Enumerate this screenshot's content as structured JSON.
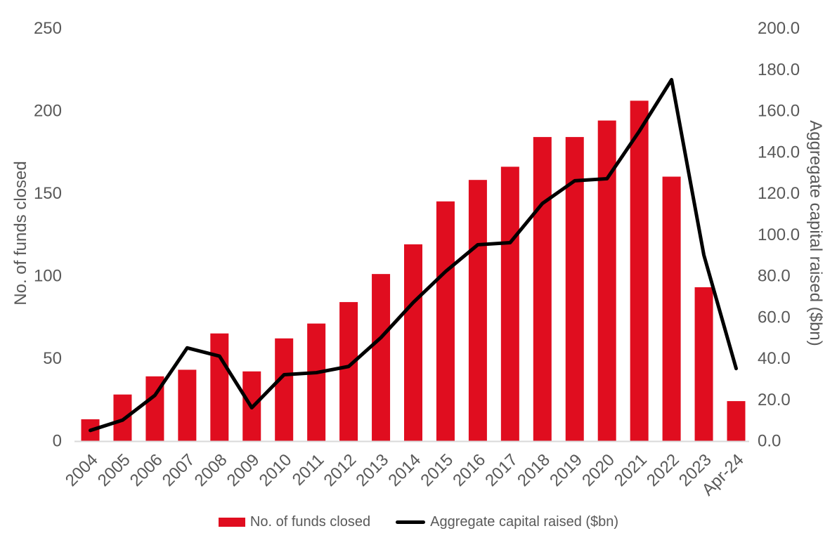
{
  "colors": {
    "bar": "#e00d1f",
    "line": "#000000",
    "axis_line": "#d9d9d9",
    "text": "#595959",
    "background": "#ffffff"
  },
  "chart_data": {
    "type": "bar",
    "subtype": "combo-bar-line-dual-axis",
    "categories": [
      "2004",
      "2005",
      "2006",
      "2007",
      "2008",
      "2009",
      "2010",
      "2011",
      "2012",
      "2013",
      "2014",
      "2015",
      "2016",
      "2017",
      "2018",
      "2019",
      "2020",
      "2021",
      "2022",
      "2023",
      "Apr-24"
    ],
    "series": [
      {
        "name": "No. of funds closed",
        "type": "bar",
        "axis": "left",
        "color": "#e00d1f",
        "values": [
          13,
          28,
          39,
          43,
          65,
          42,
          62,
          71,
          84,
          101,
          119,
          145,
          158,
          166,
          184,
          184,
          194,
          206,
          160,
          93,
          24
        ]
      },
      {
        "name": "Aggregate capital raised ($bn)",
        "type": "line",
        "axis": "right",
        "color": "#000000",
        "values": [
          5,
          10,
          22,
          45,
          41,
          16,
          32,
          33,
          36,
          50,
          67,
          82,
          95,
          96,
          115,
          126,
          127,
          150,
          175,
          90,
          35
        ]
      }
    ],
    "left_axis": {
      "label": "No. of funds closed",
      "min": 0,
      "max": 250,
      "step": 50,
      "ticks": [
        "0",
        "50",
        "100",
        "150",
        "200",
        "250"
      ]
    },
    "right_axis": {
      "label": "Aggregate capital raised ($bn)",
      "min": 0,
      "max": 200,
      "step": 20,
      "ticks": [
        "0.0",
        "20.0",
        "40.0",
        "60.0",
        "80.0",
        "100.0",
        "120.0",
        "140.0",
        "160.0",
        "180.0",
        "200.0"
      ]
    },
    "grid": false,
    "legend_position": "bottom"
  }
}
